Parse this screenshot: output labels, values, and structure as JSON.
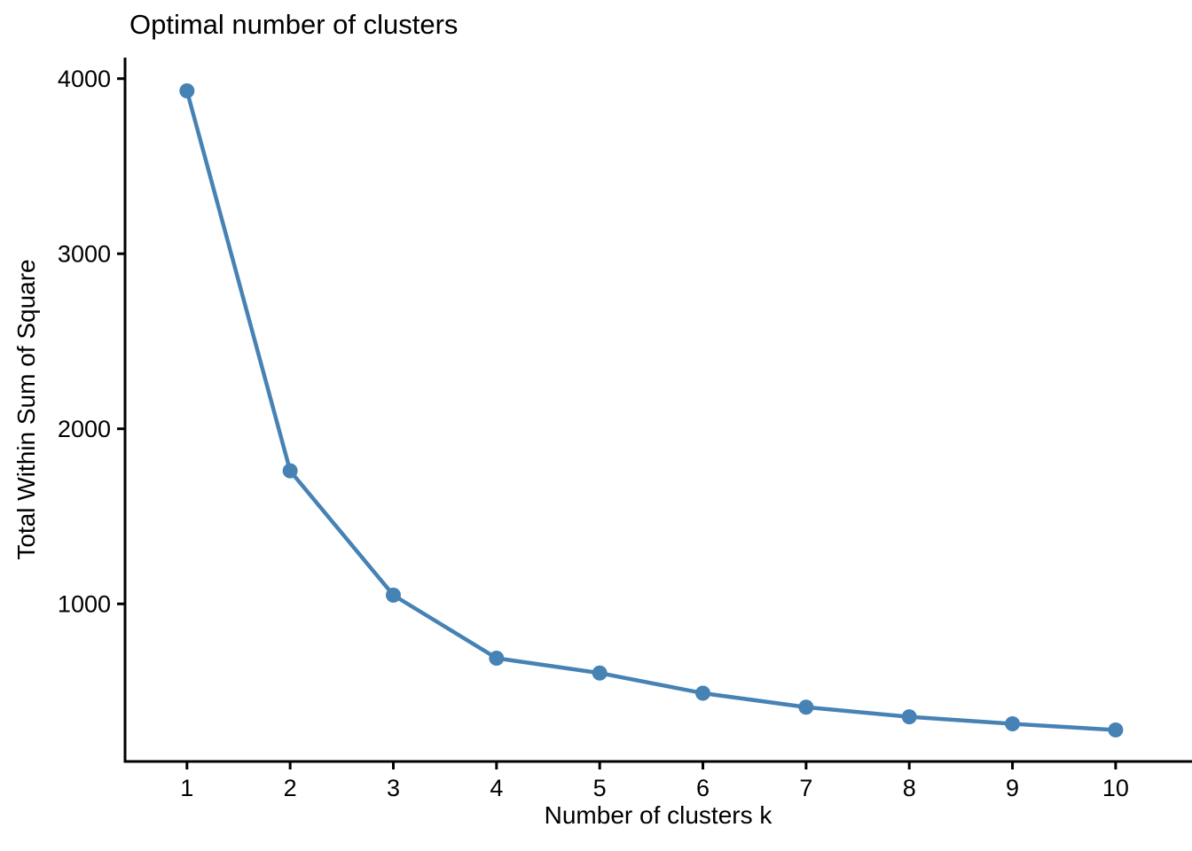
{
  "chart_data": {
    "type": "line",
    "title": "Optimal number of clusters",
    "xlabel": "Number of clusters k",
    "ylabel": "Total Within Sum of Square",
    "x": [
      1,
      2,
      3,
      4,
      5,
      6,
      7,
      8,
      9,
      10
    ],
    "series": [
      {
        "name": "total_within_ss",
        "values": [
          3930,
          1760,
          1050,
          690,
          605,
          490,
          410,
          355,
          315,
          280
        ]
      }
    ],
    "x_tick_labels": [
      "1",
      "2",
      "3",
      "4",
      "5",
      "6",
      "7",
      "8",
      "9",
      "10"
    ],
    "y_ticks": [
      1000,
      2000,
      3000,
      4000
    ],
    "y_tick_labels": [
      "1000",
      "2000",
      "3000",
      "4000"
    ],
    "xlim": [
      0.4,
      10.74
    ],
    "ylim": [
      100,
      4120
    ],
    "grid": "off",
    "legend": "none",
    "marker": "filled-circle",
    "colors": {
      "line": "#4682B4",
      "point": "#4682B4",
      "axis": "#000000",
      "text": "#000000",
      "background": "#ffffff"
    }
  }
}
